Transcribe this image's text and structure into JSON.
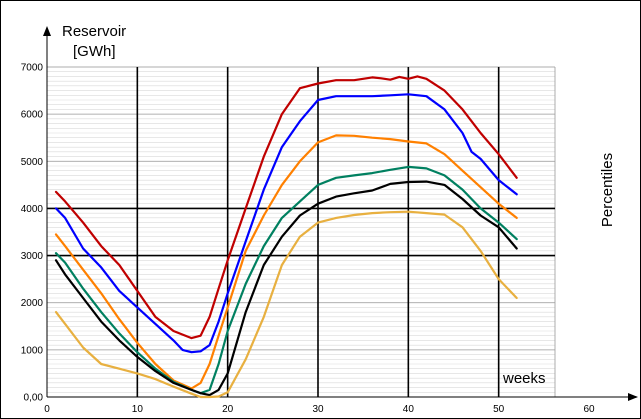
{
  "chart_data": {
    "type": "line",
    "ylabel_line1": "Reservoir",
    "ylabel_line2": "[GWh]",
    "xlabel": "weeks",
    "right_label": "Percentiles",
    "xlim": [
      0,
      60
    ],
    "ylim": [
      0,
      7000
    ],
    "x_ticks": [
      {
        "v": 0,
        "label": "0"
      },
      {
        "v": 10,
        "label": "10"
      },
      {
        "v": 20,
        "label": "20"
      },
      {
        "v": 30,
        "label": "30"
      },
      {
        "v": 40,
        "label": "40"
      },
      {
        "v": 50,
        "label": "50"
      },
      {
        "v": 60,
        "label": "60"
      }
    ],
    "y_ticks": [
      {
        "v": 0,
        "label": "0,00"
      },
      {
        "v": 1000,
        "label": "1000"
      },
      {
        "v": 2000,
        "label": "2000"
      },
      {
        "v": 3000,
        "label": "3000"
      },
      {
        "v": 4000,
        "label": "4000"
      },
      {
        "v": 5000,
        "label": "5000"
      },
      {
        "v": 6000,
        "label": "6000"
      },
      {
        "v": 7000,
        "label": "7000"
      }
    ],
    "thick_hlines": [
      3000,
      4000
    ],
    "thick_vlines": [
      10,
      20,
      30,
      40,
      50
    ],
    "grid_minor_step": 100,
    "series": [
      {
        "color": "#c00000",
        "points": [
          [
            1,
            4350
          ],
          [
            2,
            4150
          ],
          [
            4,
            3700
          ],
          [
            6,
            3200
          ],
          [
            8,
            2800
          ],
          [
            10,
            2250
          ],
          [
            12,
            1700
          ],
          [
            14,
            1400
          ],
          [
            16,
            1250
          ],
          [
            17,
            1300
          ],
          [
            18,
            1700
          ],
          [
            19,
            2300
          ],
          [
            20,
            2900
          ],
          [
            22,
            4000
          ],
          [
            24,
            5100
          ],
          [
            26,
            6000
          ],
          [
            28,
            6550
          ],
          [
            30,
            6650
          ],
          [
            32,
            6720
          ],
          [
            34,
            6720
          ],
          [
            36,
            6780
          ],
          [
            37,
            6760
          ],
          [
            38,
            6730
          ],
          [
            39,
            6790
          ],
          [
            40,
            6750
          ],
          [
            41,
            6800
          ],
          [
            42,
            6750
          ],
          [
            44,
            6500
          ],
          [
            46,
            6100
          ],
          [
            48,
            5600
          ],
          [
            50,
            5150
          ],
          [
            52,
            4650
          ]
        ]
      },
      {
        "color": "#0000ff",
        "points": [
          [
            1,
            4000
          ],
          [
            2,
            3800
          ],
          [
            4,
            3150
          ],
          [
            6,
            2750
          ],
          [
            8,
            2250
          ],
          [
            10,
            1900
          ],
          [
            12,
            1550
          ],
          [
            14,
            1200
          ],
          [
            15,
            1000
          ],
          [
            16,
            950
          ],
          [
            17,
            970
          ],
          [
            18,
            1100
          ],
          [
            19,
            1600
          ],
          [
            20,
            2200
          ],
          [
            22,
            3300
          ],
          [
            24,
            4400
          ],
          [
            26,
            5300
          ],
          [
            28,
            5850
          ],
          [
            30,
            6300
          ],
          [
            32,
            6380
          ],
          [
            34,
            6380
          ],
          [
            36,
            6380
          ],
          [
            38,
            6400
          ],
          [
            40,
            6420
          ],
          [
            42,
            6380
          ],
          [
            44,
            6100
          ],
          [
            46,
            5600
          ],
          [
            47,
            5200
          ],
          [
            48,
            5050
          ],
          [
            50,
            4600
          ],
          [
            52,
            4300
          ]
        ]
      },
      {
        "color": "#ff8000",
        "points": [
          [
            1,
            3450
          ],
          [
            2,
            3200
          ],
          [
            4,
            2700
          ],
          [
            6,
            2200
          ],
          [
            8,
            1650
          ],
          [
            10,
            1150
          ],
          [
            12,
            700
          ],
          [
            14,
            350
          ],
          [
            16,
            180
          ],
          [
            17,
            300
          ],
          [
            18,
            700
          ],
          [
            19,
            1300
          ],
          [
            20,
            1900
          ],
          [
            22,
            3100
          ],
          [
            24,
            3850
          ],
          [
            26,
            4500
          ],
          [
            28,
            5000
          ],
          [
            30,
            5400
          ],
          [
            32,
            5550
          ],
          [
            34,
            5540
          ],
          [
            36,
            5500
          ],
          [
            38,
            5470
          ],
          [
            40,
            5420
          ],
          [
            42,
            5380
          ],
          [
            44,
            5150
          ],
          [
            46,
            4800
          ],
          [
            48,
            4450
          ],
          [
            50,
            4100
          ],
          [
            52,
            3800
          ]
        ]
      },
      {
        "color": "#008060",
        "points": [
          [
            1,
            3050
          ],
          [
            2,
            2850
          ],
          [
            4,
            2300
          ],
          [
            6,
            1800
          ],
          [
            8,
            1350
          ],
          [
            10,
            950
          ],
          [
            12,
            600
          ],
          [
            14,
            320
          ],
          [
            16,
            150
          ],
          [
            17,
            80
          ],
          [
            18,
            150
          ],
          [
            19,
            700
          ],
          [
            20,
            1400
          ],
          [
            22,
            2400
          ],
          [
            24,
            3200
          ],
          [
            26,
            3800
          ],
          [
            28,
            4150
          ],
          [
            30,
            4500
          ],
          [
            32,
            4650
          ],
          [
            34,
            4700
          ],
          [
            36,
            4750
          ],
          [
            38,
            4820
          ],
          [
            40,
            4880
          ],
          [
            42,
            4850
          ],
          [
            44,
            4700
          ],
          [
            46,
            4400
          ],
          [
            48,
            4000
          ],
          [
            50,
            3700
          ],
          [
            52,
            3350
          ]
        ]
      },
      {
        "color": "#000000",
        "points": [
          [
            1,
            2900
          ],
          [
            2,
            2600
          ],
          [
            4,
            2100
          ],
          [
            6,
            1600
          ],
          [
            8,
            1200
          ],
          [
            10,
            850
          ],
          [
            12,
            550
          ],
          [
            14,
            300
          ],
          [
            16,
            150
          ],
          [
            17,
            80
          ],
          [
            18,
            40
          ],
          [
            19,
            150
          ],
          [
            20,
            500
          ],
          [
            22,
            1800
          ],
          [
            24,
            2800
          ],
          [
            26,
            3400
          ],
          [
            28,
            3850
          ],
          [
            30,
            4100
          ],
          [
            32,
            4250
          ],
          [
            34,
            4320
          ],
          [
            36,
            4380
          ],
          [
            38,
            4520
          ],
          [
            40,
            4560
          ],
          [
            42,
            4570
          ],
          [
            44,
            4500
          ],
          [
            46,
            4200
          ],
          [
            48,
            3850
          ],
          [
            50,
            3600
          ],
          [
            52,
            3150
          ]
        ]
      },
      {
        "color": "#e8b040",
        "points": [
          [
            1,
            1800
          ],
          [
            2,
            1550
          ],
          [
            4,
            1050
          ],
          [
            6,
            700
          ],
          [
            8,
            600
          ],
          [
            10,
            500
          ],
          [
            12,
            380
          ],
          [
            14,
            220
          ],
          [
            16,
            70
          ],
          [
            17,
            0
          ],
          [
            18,
            0
          ],
          [
            19,
            10
          ],
          [
            20,
            100
          ],
          [
            22,
            800
          ],
          [
            24,
            1700
          ],
          [
            26,
            2800
          ],
          [
            28,
            3400
          ],
          [
            30,
            3700
          ],
          [
            32,
            3800
          ],
          [
            34,
            3860
          ],
          [
            36,
            3900
          ],
          [
            38,
            3920
          ],
          [
            40,
            3930
          ],
          [
            42,
            3900
          ],
          [
            44,
            3870
          ],
          [
            46,
            3600
          ],
          [
            48,
            3100
          ],
          [
            50,
            2500
          ],
          [
            52,
            2100
          ]
        ]
      }
    ]
  }
}
